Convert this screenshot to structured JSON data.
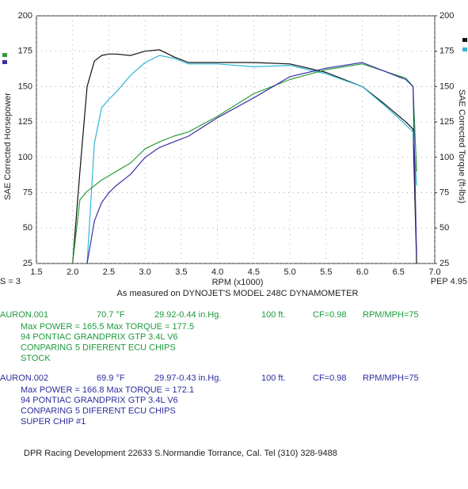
{
  "chart_data": {
    "type": "line",
    "ylabel": "SAE Corrected Horsepower",
    "y2label": "SAE Corrected Torque (ft-lbs)",
    "xlabel": "RPM (x1000)",
    "subtitle": "As measured on DYNOJET'S MODEL 248C DYNAMOMETER",
    "smoothing": "S = 3",
    "pep": "PEP 4.95",
    "xlim": [
      1.5,
      7.0
    ],
    "xticks": [
      1.5,
      {
        "value": 2,
        "label": "2.0"
      },
      2.5,
      {
        "value": 3,
        "label": "3.0"
      },
      3.5,
      {
        "value": 4,
        "label": "4.0"
      },
      4.5,
      {
        "value": 5,
        "label": "5.0"
      },
      5.5,
      {
        "value": 6,
        "label": "6.0"
      },
      6.5,
      {
        "value": 7,
        "label": "7.0"
      }
    ],
    "ylim": [
      25,
      200
    ],
    "yticks": [
      25,
      50,
      75,
      100,
      125,
      150,
      175,
      200
    ],
    "y2lim": [
      25,
      200
    ],
    "y2ticks": [
      25,
      50,
      75,
      100,
      125,
      150,
      175,
      200
    ],
    "grid": true,
    "x": [
      2.0,
      2.1,
      2.2,
      2.3,
      2.4,
      2.5,
      2.6,
      2.8,
      3.0,
      3.2,
      3.4,
      3.6,
      4.0,
      4.5,
      5.0,
      5.5,
      6.0,
      6.3,
      6.6,
      6.7,
      6.75
    ],
    "series": [
      {
        "color": "#111111",
        "axis": "y2",
        "values": [
          25,
          90,
          150,
          168,
          172,
          173,
          173,
          172,
          175,
          176,
          171,
          167,
          167,
          167,
          166,
          160,
          150,
          138,
          125,
          120,
          25
        ]
      },
      {
        "color": "#2fb6d8",
        "axis": "y2",
        "values": [
          null,
          null,
          25,
          110,
          135,
          141,
          146,
          158,
          167,
          172,
          170,
          166,
          166,
          164,
          165,
          159,
          150,
          137,
          123,
          118,
          80
        ]
      },
      {
        "color": "#2a9e3a",
        "values": [
          25,
          70,
          76,
          80,
          84,
          87,
          90,
          96,
          106,
          111,
          115,
          118,
          129,
          145,
          155,
          162,
          166,
          161,
          156,
          150,
          90
        ]
      },
      {
        "color": "#3a2fa8",
        "values": [
          null,
          null,
          25,
          55,
          68,
          75,
          80,
          88,
          100,
          107,
          111,
          115,
          128,
          142,
          157,
          163,
          167,
          161,
          155,
          150,
          30
        ]
      }
    ]
  },
  "runs": [
    {
      "file": "AURON.001",
      "temp": "70.7 °F",
      "baro": "29.92-0.44 in.Hg.",
      "elev": "100 ft.",
      "cf": "CF=0.98",
      "ratio": "RPM/MPH=75",
      "lines": [
        "Max POWER = 165.5  Max TORQUE = 177.5",
        "94 PONTIAC GRANDPRIX GTP 3.4L V6",
        "CONPARING 5 DIFERENT ECU CHIPS",
        "STOCK"
      ]
    },
    {
      "file": "AURON.002",
      "temp": "69.9 °F",
      "baro": "29.97-0.43 in.Hg.",
      "elev": "100 ft.",
      "cf": "CF=0.98",
      "ratio": "RPM/MPH=75",
      "lines": [
        "Max POWER = 166.8  Max TORQUE = 172.1",
        "94 PONTIAC GRANDPRIX GTP 3.4L V6",
        "CONPARING 5 DIFERENT ECU CHIPS",
        "SUPER CHIP #1"
      ]
    }
  ],
  "footer": "DPR Racing Development 22633 S.Normandie Torrance, Cal. Tel (310) 328-9488"
}
